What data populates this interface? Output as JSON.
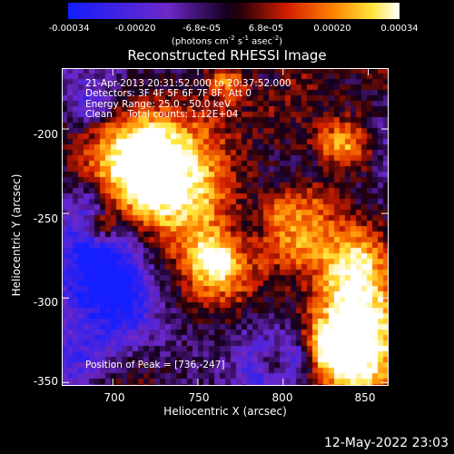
{
  "colorbar": {
    "ticks": [
      "-0.00034",
      "-0.00020",
      "-6.8e-05",
      "6.8e-05",
      "0.00020",
      "0.00034"
    ],
    "units_main": "(photons cm",
    "units_sup1": "-2",
    "units_mid": " s",
    "units_sup2": "-1",
    "units_mid2": " asec",
    "units_sup3": "-2",
    "units_end": ")"
  },
  "title": "Reconstructed RHESSI Image",
  "info": {
    "line1": "21-Apr-2013 20:31:52.000 to 20:37:52.000",
    "line2": "Detectors: 3F 4F 5F 6F 7F 8F, Att 0",
    "line3": "Energy Range: 25.0 - 50.0 keV",
    "line4": "Clean     Total counts: 1.12E+04",
    "peak": "Position of Peak = [736,-247]"
  },
  "axes": {
    "ylabel": "Heliocentric Y (arcsec)",
    "xlabel": "Heliocentric X (arcsec)",
    "yticks": [
      "-200",
      "-250",
      "-300",
      "-350"
    ],
    "xticks": [
      "700",
      "750",
      "800",
      "850"
    ],
    "xrange": [
      670,
      862
    ],
    "yrange": [
      -352,
      -164
    ]
  },
  "timestamp": "12-May-2022 23:03"
}
